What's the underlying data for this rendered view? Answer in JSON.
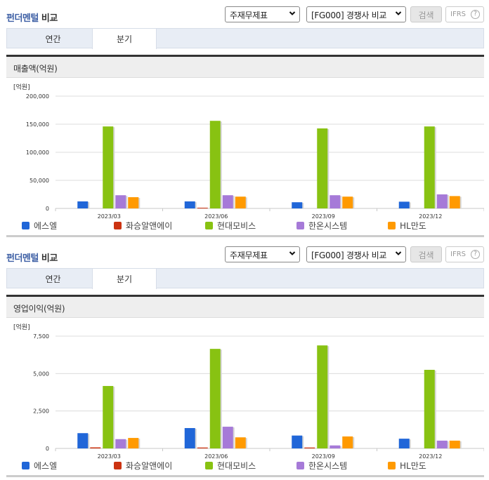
{
  "sections": [
    {
      "title_highlight": "펀더멘털",
      "title_rest": " 비교",
      "select_statement": "주재무제표",
      "select_group": "[FG000] 경쟁사 비교",
      "search_label": "검색",
      "ifrs_label": "IFRS",
      "help_glyph": "?",
      "tabs": [
        {
          "label": "연간",
          "active": false
        },
        {
          "label": "분기",
          "active": true
        }
      ],
      "panel_title": "매출액(억원)",
      "unit": "[억원]"
    },
    {
      "title_highlight": "펀더멘털",
      "title_rest": " 비교",
      "select_statement": "주재무제표",
      "select_group": "[FG000] 경쟁사 비교",
      "search_label": "검색",
      "ifrs_label": "IFRS",
      "help_glyph": "?",
      "tabs": [
        {
          "label": "연간",
          "active": false
        },
        {
          "label": "분기",
          "active": true
        }
      ],
      "panel_title": "영업이익(억원)",
      "unit": "[억원]"
    }
  ],
  "legend": [
    {
      "name": "에스엘",
      "color": "#2066d8"
    },
    {
      "name": "화승알앤에이",
      "color": "#cc3311"
    },
    {
      "name": "현대모비스",
      "color": "#88c212"
    },
    {
      "name": "한온시스템",
      "color": "#a67ad8"
    },
    {
      "name": "HL만도",
      "color": "#ff9a00"
    }
  ],
  "chart_data": [
    {
      "type": "bar",
      "title": "매출액(억원)",
      "ylabel": "[억원]",
      "xlabel": "",
      "categories": [
        "2023/03",
        "2023/06",
        "2023/09",
        "2023/12"
      ],
      "yticks": [
        "0",
        "50,000",
        "100,000",
        "150,000",
        "200,000"
      ],
      "ylim": [
        0,
        200000
      ],
      "grid": true,
      "legend_position": "bottom",
      "series": [
        {
          "name": "에스엘",
          "values": [
            12500,
            12500,
            11000,
            12000
          ]
        },
        {
          "name": "화승알앤에이",
          "values": [
            0,
            1000,
            0,
            0
          ]
        },
        {
          "name": "현대모비스",
          "values": [
            146000,
            156000,
            142500,
            146000
          ]
        },
        {
          "name": "한온시스템",
          "values": [
            23500,
            23500,
            23500,
            25000
          ]
        },
        {
          "name": "HL만도",
          "values": [
            20000,
            21000,
            21000,
            22000
          ]
        }
      ]
    },
    {
      "type": "bar",
      "title": "영업이익(억원)",
      "ylabel": "[억원]",
      "xlabel": "",
      "categories": [
        "2023/03",
        "2023/06",
        "2023/09",
        "2023/12"
      ],
      "yticks": [
        "0",
        "2,500",
        "5,000",
        "7,500"
      ],
      "ylim": [
        0,
        7500
      ],
      "grid": true,
      "legend_position": "bottom",
      "series": [
        {
          "name": "에스엘",
          "values": [
            1020,
            1360,
            860,
            650
          ]
        },
        {
          "name": "화승알앤에이",
          "values": [
            70,
            60,
            60,
            0
          ]
        },
        {
          "name": "현대모비스",
          "values": [
            4170,
            6650,
            6880,
            5250
          ]
        },
        {
          "name": "한온시스템",
          "values": [
            620,
            1450,
            200,
            520
          ]
        },
        {
          "name": "HL만도",
          "values": [
            700,
            740,
            800,
            520
          ]
        }
      ]
    }
  ]
}
